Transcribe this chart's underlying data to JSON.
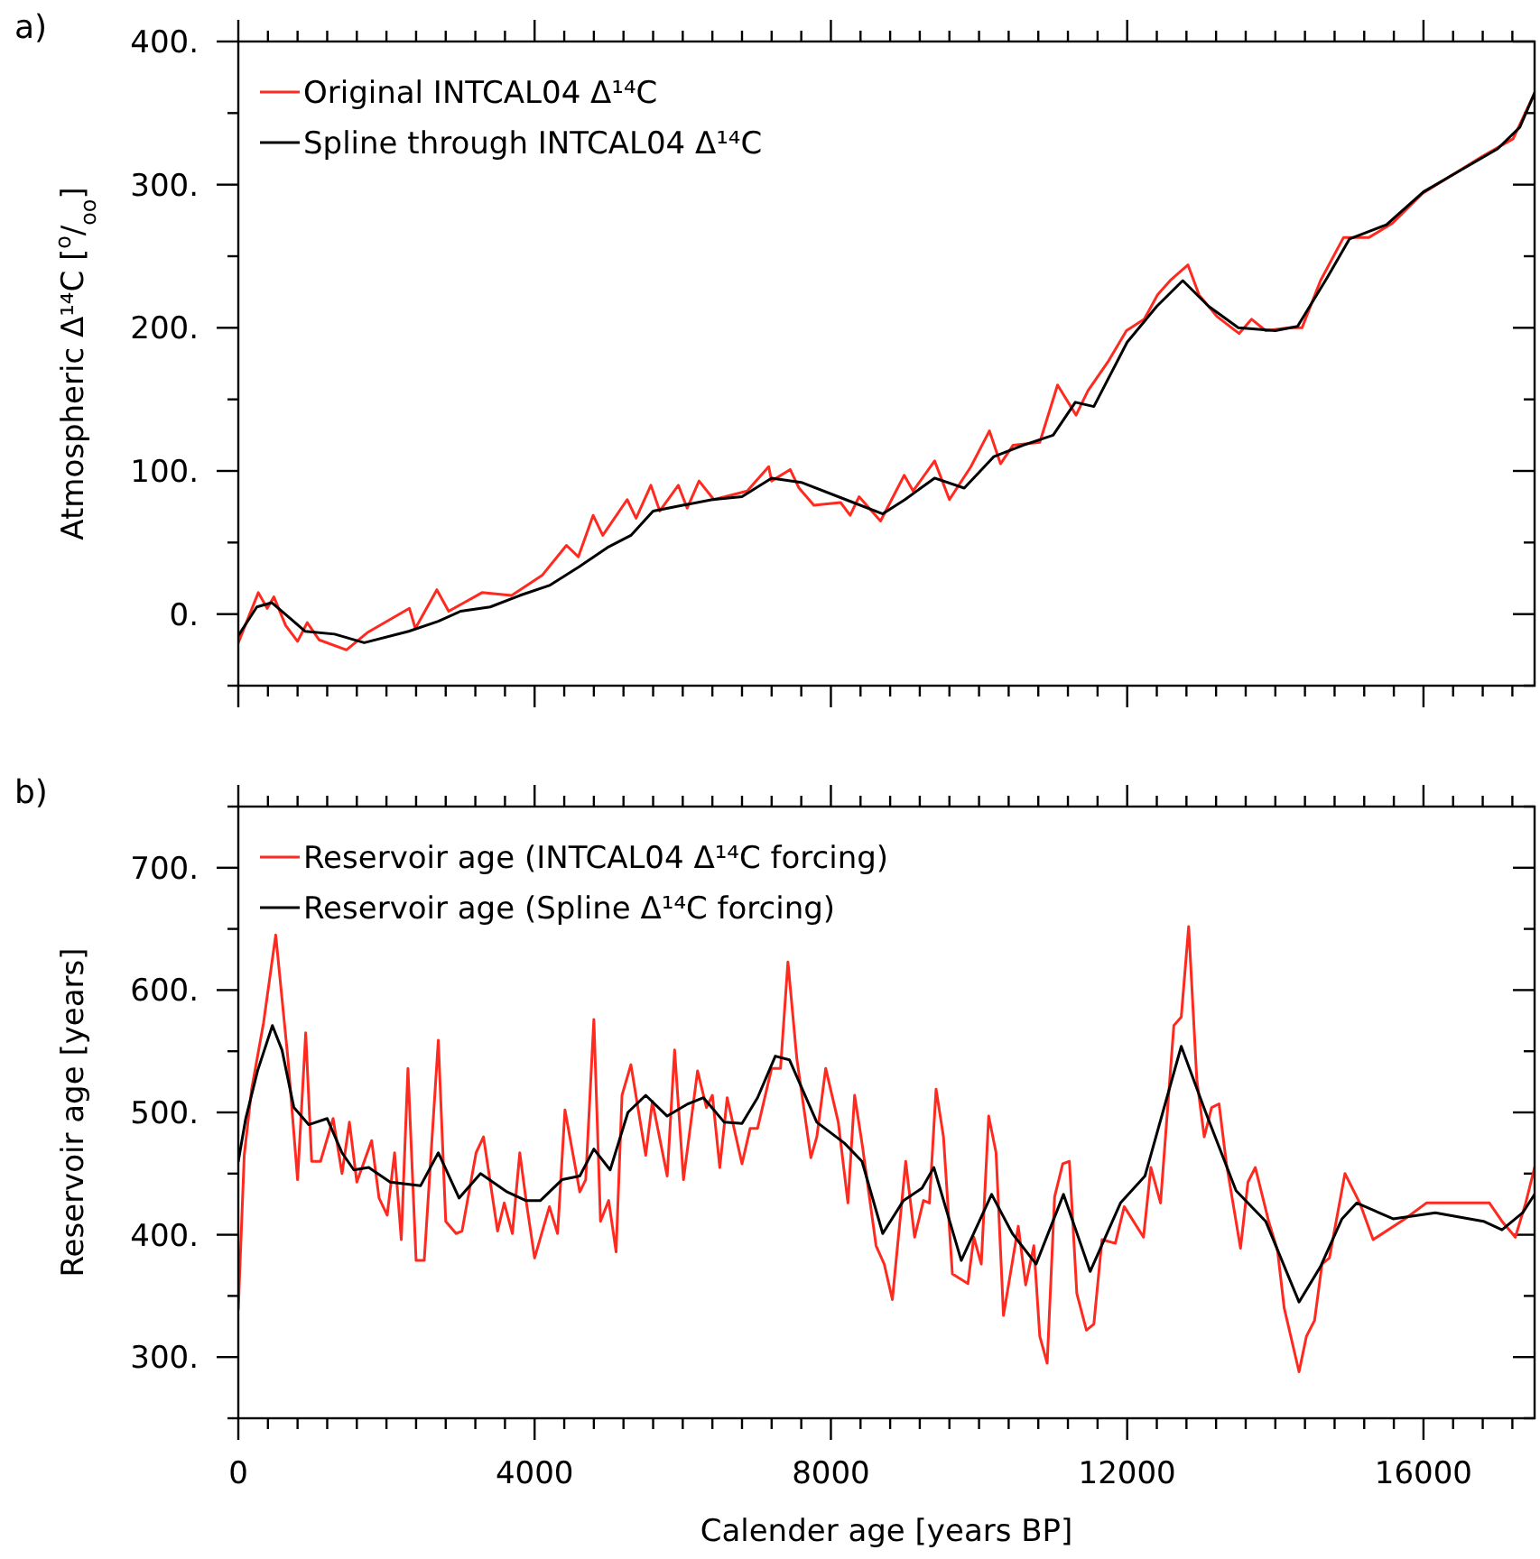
{
  "chart_data": [
    {
      "type": "line",
      "ylabel": "Atmospheric Δ¹⁴C [$^{o}$/$_{oo}$]",
      "annotations": [
        "a)"
      ],
      "legend": "top left",
      "line_style": "solid",
      "marker": "none",
      "tick_labels": "y",
      "xlim": [
        0,
        17500
      ],
      "ylim": [
        -50,
        400
      ],
      "xticks": [
        0,
        {
          "value": 400,
          "label": null
        },
        {
          "value": 800,
          "label": null
        },
        {
          "value": 1200,
          "label": null
        },
        {
          "value": 1600,
          "label": null
        },
        {
          "value": 2000,
          "label": null
        },
        {
          "value": 2400,
          "label": null
        },
        {
          "value": 2800,
          "label": null
        },
        {
          "value": 3200,
          "label": null
        },
        {
          "value": 3600,
          "label": null
        },
        4000,
        {
          "value": 4400,
          "label": null
        },
        {
          "value": 4800,
          "label": null
        },
        {
          "value": 5200,
          "label": null
        },
        {
          "value": 5600,
          "label": null
        },
        {
          "value": 6000,
          "label": null
        },
        {
          "value": 6400,
          "label": null
        },
        {
          "value": 6800,
          "label": null
        },
        {
          "value": 7200,
          "label": null
        },
        {
          "value": 7600,
          "label": null
        },
        8000,
        {
          "value": 8400,
          "label": null
        },
        {
          "value": 8800,
          "label": null
        },
        {
          "value": 9200,
          "label": null
        },
        {
          "value": 9600,
          "label": null
        },
        {
          "value": 10000,
          "label": null
        },
        {
          "value": 10400,
          "label": null
        },
        {
          "value": 10800,
          "label": null
        },
        {
          "value": 11200,
          "label": null
        },
        {
          "value": 11600,
          "label": null
        },
        12000,
        {
          "value": 12400,
          "label": null
        },
        {
          "value": 12800,
          "label": null
        },
        {
          "value": 13200,
          "label": null
        },
        {
          "value": 13600,
          "label": null
        },
        {
          "value": 14000,
          "label": null
        },
        {
          "value": 14400,
          "label": null
        },
        {
          "value": 14800,
          "label": null
        },
        {
          "value": 15200,
          "label": null
        },
        {
          "value": 15600,
          "label": null
        },
        16000,
        {
          "value": 16400,
          "label": null
        },
        {
          "value": 16800,
          "label": null
        },
        {
          "value": 17200,
          "label": null
        }
      ],
      "yticks": [
        {
          "value": -50,
          "label": null
        },
        {
          "value": 0,
          "label": "0."
        },
        {
          "value": 50,
          "label": null
        },
        {
          "value": 100,
          "label": "100."
        },
        {
          "value": 150,
          "label": null
        },
        {
          "value": 200,
          "label": "200."
        },
        {
          "value": 250,
          "label": null
        },
        {
          "value": 300,
          "label": "300."
        },
        {
          "value": 350,
          "label": null
        },
        {
          "value": 400,
          "label": "400."
        }
      ],
      "series": [
        {
          "name": "Original INTCAL04 Δ¹⁴C",
          "color": "#ff2a1f",
          "x": [
            0,
            270,
            390,
            480,
            640,
            800,
            930,
            1090,
            1460,
            1740,
            2310,
            2390,
            2680,
            2840,
            3290,
            3690,
            4100,
            4430,
            4590,
            4790,
            4920,
            5250,
            5370,
            5570,
            5690,
            5940,
            6060,
            6220,
            6420,
            6870,
            7160,
            7200,
            7450,
            7570,
            7770,
            8130,
            8260,
            8380,
            8670,
            8990,
            9110,
            9400,
            9600,
            9890,
            10140,
            10290,
            10460,
            10820,
            11060,
            11310,
            11470,
            11750,
            11990,
            12230,
            12410,
            12580,
            12820,
            12970,
            13210,
            13510,
            13680,
            13870,
            14190,
            14360,
            14610,
            14920,
            15260,
            15580,
            15990,
            16800,
            17210,
            17500
          ],
          "values": [
            -20,
            15,
            4,
            12,
            -8,
            -19,
            -6,
            -18,
            -25,
            -13,
            4,
            -10,
            17,
            2,
            15,
            13,
            27,
            48,
            40,
            69,
            55,
            80,
            67,
            90,
            72,
            90,
            74,
            93,
            80,
            86,
            103,
            93,
            101,
            88,
            76,
            78,
            69,
            82,
            65,
            97,
            86,
            107,
            80,
            103,
            128,
            105,
            118,
            120,
            160,
            139,
            156,
            177,
            198,
            206,
            223,
            233,
            244,
            223,
            208,
            196,
            206,
            198,
            200,
            200,
            233,
            263,
            263,
            273,
            294,
            320,
            332,
            364
          ]
        },
        {
          "name": "Spline through INTCAL04 Δ¹⁴C",
          "color": "#000000",
          "x": [
            0,
            250,
            450,
            700,
            900,
            1300,
            1700,
            2300,
            2700,
            3000,
            3400,
            3800,
            4200,
            4600,
            5000,
            5300,
            5600,
            6000,
            6400,
            6800,
            7200,
            7600,
            8200,
            8700,
            9000,
            9400,
            9800,
            10200,
            10600,
            11000,
            11300,
            11550,
            12000,
            12400,
            12750,
            13100,
            13500,
            14000,
            14300,
            14700,
            15000,
            15500,
            16000,
            16500,
            17000,
            17300,
            17500
          ],
          "values": [
            -15,
            5,
            8,
            -3,
            -12,
            -14,
            -20,
            -12,
            -5,
            2,
            5,
            13,
            20,
            33,
            47,
            55,
            72,
            76,
            80,
            82,
            95,
            92,
            80,
            70,
            80,
            95,
            88,
            110,
            118,
            125,
            148,
            145,
            190,
            215,
            233,
            215,
            200,
            198,
            201,
            235,
            262,
            272,
            295,
            310,
            325,
            340,
            364
          ]
        }
      ]
    },
    {
      "type": "line",
      "xlabel": "Calender age [years BP]",
      "ylabel": "Reservoir age [years]",
      "annotations": [
        "b)"
      ],
      "legend": "top left",
      "line_style": "solid",
      "marker": "none",
      "xlim": [
        0,
        17500
      ],
      "ylim": [
        250,
        750
      ],
      "xticks": [
        0,
        {
          "value": 400,
          "label": null
        },
        {
          "value": 800,
          "label": null
        },
        {
          "value": 1200,
          "label": null
        },
        {
          "value": 1600,
          "label": null
        },
        {
          "value": 2000,
          "label": null
        },
        {
          "value": 2400,
          "label": null
        },
        {
          "value": 2800,
          "label": null
        },
        {
          "value": 3200,
          "label": null
        },
        {
          "value": 3600,
          "label": null
        },
        4000,
        {
          "value": 4400,
          "label": null
        },
        {
          "value": 4800,
          "label": null
        },
        {
          "value": 5200,
          "label": null
        },
        {
          "value": 5600,
          "label": null
        },
        {
          "value": 6000,
          "label": null
        },
        {
          "value": 6400,
          "label": null
        },
        {
          "value": 6800,
          "label": null
        },
        {
          "value": 7200,
          "label": null
        },
        {
          "value": 7600,
          "label": null
        },
        8000,
        {
          "value": 8400,
          "label": null
        },
        {
          "value": 8800,
          "label": null
        },
        {
          "value": 9200,
          "label": null
        },
        {
          "value": 9600,
          "label": null
        },
        {
          "value": 10000,
          "label": null
        },
        {
          "value": 10400,
          "label": null
        },
        {
          "value": 10800,
          "label": null
        },
        {
          "value": 11200,
          "label": null
        },
        {
          "value": 11600,
          "label": null
        },
        12000,
        {
          "value": 12400,
          "label": null
        },
        {
          "value": 12800,
          "label": null
        },
        {
          "value": 13200,
          "label": null
        },
        {
          "value": 13600,
          "label": null
        },
        {
          "value": 14000,
          "label": null
        },
        {
          "value": 14400,
          "label": null
        },
        {
          "value": 14800,
          "label": null
        },
        {
          "value": 15200,
          "label": null
        },
        {
          "value": 15600,
          "label": null
        },
        16000,
        {
          "value": 16400,
          "label": null
        },
        {
          "value": 16800,
          "label": null
        },
        {
          "value": 17200,
          "label": null
        }
      ],
      "yticks": [
        {
          "value": 250,
          "label": null
        },
        {
          "value": 300,
          "label": "300."
        },
        {
          "value": 350,
          "label": null
        },
        {
          "value": 400,
          "label": "400."
        },
        {
          "value": 450,
          "label": null
        },
        {
          "value": 500,
          "label": "500."
        },
        {
          "value": 550,
          "label": null
        },
        {
          "value": 600,
          "label": "600."
        },
        {
          "value": 650,
          "label": null
        },
        {
          "value": 700,
          "label": "700."
        },
        {
          "value": 750,
          "label": null
        }
      ],
      "series": [
        {
          "name": "Reservoir age (INTCAL04 Δ¹⁴C forcing)",
          "color": "#ff2a1f",
          "x": [
            0,
            80,
            180,
            340,
            505,
            670,
            800,
            910,
            990,
            1110,
            1280,
            1400,
            1500,
            1600,
            1800,
            1900,
            2010,
            2110,
            2200,
            2290,
            2400,
            2510,
            2700,
            2800,
            2940,
            3020,
            3210,
            3310,
            3500,
            3590,
            3700,
            3800,
            3890,
            4000,
            4200,
            4310,
            4410,
            4610,
            4690,
            4800,
            4890,
            5000,
            5100,
            5180,
            5300,
            5500,
            5590,
            5790,
            5890,
            6010,
            6200,
            6320,
            6400,
            6500,
            6600,
            6800,
            6910,
            7010,
            7200,
            7320,
            7420,
            7540,
            7730,
            7810,
            7930,
            8100,
            8230,
            8320,
            8420,
            8610,
            8720,
            8830,
            9010,
            9130,
            9250,
            9330,
            9420,
            9520,
            9640,
            9850,
            9930,
            10030,
            10130,
            10230,
            10330,
            10530,
            10630,
            10740,
            10820,
            10920,
            11020,
            11130,
            11220,
            11320,
            11450,
            11550,
            11660,
            11840,
            11960,
            12220,
            12320,
            12450,
            12630,
            12730,
            12830,
            12940,
            13040,
            13140,
            13240,
            13340,
            13530,
            13630,
            13730,
            13910,
            14030,
            14120,
            14320,
            14420,
            14530,
            14630,
            14730,
            14940,
            15140,
            15320,
            15750,
            16040,
            16890,
            17060,
            17240,
            17380,
            17500
          ],
          "values": [
            339,
            465,
            519,
            573,
            645,
            544,
            445,
            565,
            460,
            460,
            495,
            450,
            492,
            443,
            477,
            430,
            416,
            467,
            396,
            536,
            379,
            379,
            559,
            411,
            401,
            403,
            467,
            480,
            403,
            426,
            401,
            467,
            426,
            381,
            423,
            401,
            502,
            435,
            445,
            576,
            411,
            428,
            386,
            514,
            539,
            465,
            509,
            448,
            551,
            445,
            534,
            504,
            514,
            455,
            512,
            458,
            487,
            487,
            536,
            536,
            623,
            544,
            463,
            480,
            536,
            492,
            426,
            514,
            475,
            391,
            376,
            347,
            460,
            398,
            428,
            426,
            519,
            480,
            368,
            360,
            398,
            376,
            497,
            467,
            334,
            407,
            359,
            391,
            317,
            295,
            431,
            458,
            460,
            352,
            322,
            327,
            396,
            393,
            423,
            398,
            455,
            426,
            571,
            578,
            652,
            527,
            480,
            504,
            507,
            458,
            389,
            443,
            455,
            411,
            387,
            340,
            288,
            317,
            330,
            376,
            381,
            450,
            426,
            396,
            413,
            426,
            426,
            411,
            398,
            426,
            455
          ]
        },
        {
          "name": "Reservoir age (Spline Δ¹⁴C forcing)",
          "color": "#000000",
          "x": [
            0,
            100,
            260,
            460,
            590,
            750,
            950,
            1200,
            1400,
            1560,
            1760,
            2050,
            2460,
            2700,
            2980,
            3270,
            3630,
            3880,
            4080,
            4370,
            4610,
            4800,
            5020,
            5260,
            5500,
            5790,
            6070,
            6280,
            6560,
            6800,
            7010,
            7250,
            7440,
            7810,
            8180,
            8420,
            8700,
            8980,
            9230,
            9390,
            9760,
            10170,
            10450,
            10770,
            11140,
            11500,
            11910,
            12240,
            12730,
            13060,
            13470,
            13870,
            14320,
            14610,
            14900,
            15100,
            15590,
            16160,
            16810,
            17060,
            17340,
            17500
          ],
          "values": [
            460,
            495,
            534,
            571,
            551,
            504,
            490,
            495,
            467,
            453,
            455,
            443,
            440,
            467,
            430,
            450,
            435,
            428,
            428,
            445,
            448,
            470,
            453,
            500,
            514,
            497,
            507,
            512,
            492,
            491,
            512,
            546,
            543,
            492,
            475,
            460,
            401,
            428,
            438,
            455,
            379,
            433,
            401,
            376,
            433,
            370,
            426,
            448,
            554,
            500,
            436,
            411,
            345,
            374,
            413,
            426,
            413,
            418,
            411,
            404,
            418,
            433
          ]
        }
      ]
    }
  ]
}
